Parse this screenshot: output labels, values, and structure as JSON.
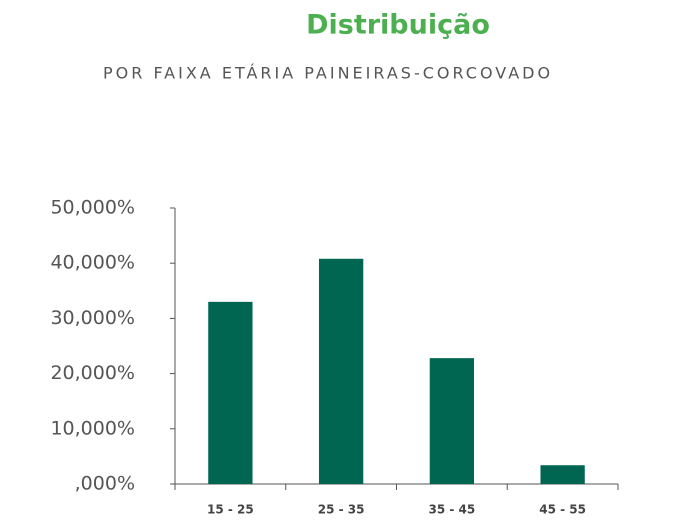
{
  "chart_data": {
    "type": "bar",
    "title": "Distribuição",
    "subtitle": "POR FAIXA ETÁRIA PAINEIRAS-CORCOVADO",
    "categories": [
      "15 - 25",
      "25 - 35",
      "35 - 45",
      "45 - 55"
    ],
    "values": [
      33,
      40.8,
      22.8,
      3.4
    ],
    "color": "#006652",
    "ylim": [
      0,
      50
    ],
    "yticks": [
      {
        "value": 0,
        "label": ",000%"
      },
      {
        "value": 10,
        "label": "10,000%"
      },
      {
        "value": 20,
        "label": "20,000%"
      },
      {
        "value": 30,
        "label": "30,000%"
      },
      {
        "value": 40,
        "label": "40,000%"
      },
      {
        "value": 50,
        "label": "50,000%"
      }
    ],
    "grid": false
  }
}
